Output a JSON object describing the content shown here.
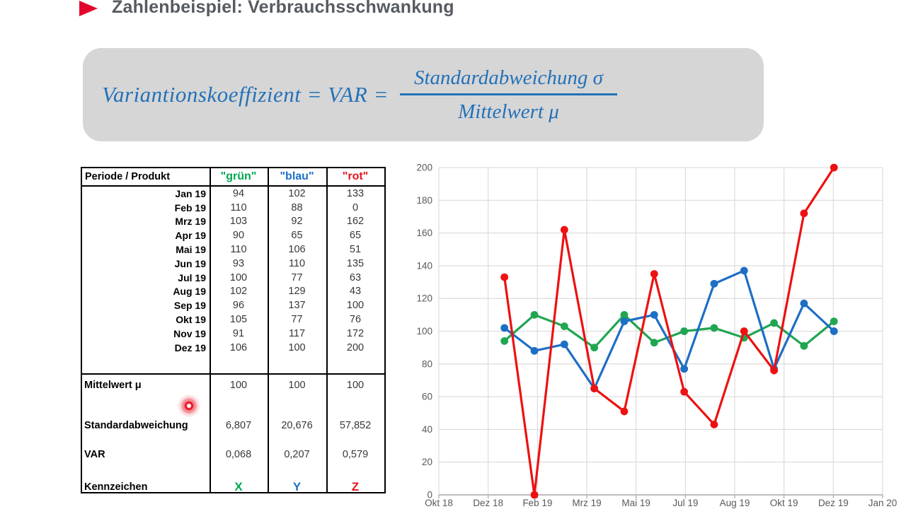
{
  "header": {
    "title": "Zahlenbeispiel: Verbrauchsschwankung"
  },
  "formula": {
    "lhs": "Variantionskoeffizient = VAR =",
    "numerator": "Standardabweichung σ",
    "denominator": "Mittelwert μ"
  },
  "table": {
    "corner_header": "Periode / Produkt",
    "product_columns": [
      {
        "label": "\"grün\"",
        "color": "#00a651"
      },
      {
        "label": "\"blau\"",
        "color": "#1d70c8"
      },
      {
        "label": "\"rot\"",
        "color": "#e3141c"
      }
    ],
    "month_rows": [
      {
        "month": "Jan 19",
        "values": [
          94,
          102,
          133
        ]
      },
      {
        "month": "Feb 19",
        "values": [
          110,
          88,
          0
        ]
      },
      {
        "month": "Mrz 19",
        "values": [
          103,
          92,
          162
        ]
      },
      {
        "month": "Apr 19",
        "values": [
          90,
          65,
          65
        ]
      },
      {
        "month": "Mai 19",
        "values": [
          110,
          106,
          51
        ]
      },
      {
        "month": "Jun 19",
        "values": [
          93,
          110,
          135
        ]
      },
      {
        "month": "Jul 19",
        "values": [
          100,
          77,
          63
        ]
      },
      {
        "month": "Aug 19",
        "values": [
          102,
          129,
          43
        ]
      },
      {
        "month": "Sep 19",
        "values": [
          96,
          137,
          100
        ]
      },
      {
        "month": "Okt 19",
        "values": [
          105,
          77,
          76
        ]
      },
      {
        "month": "Nov 19",
        "values": [
          91,
          117,
          172
        ]
      },
      {
        "month": "Dez 19",
        "values": [
          106,
          100,
          200
        ]
      }
    ],
    "summary_rows": [
      {
        "label": "Mittelwert μ",
        "values": [
          "100",
          "100",
          "100"
        ],
        "colored": false
      },
      {
        "label": "Standardabweichung",
        "values": [
          "6,807",
          "20,676",
          "57,852"
        ],
        "colored": false
      },
      {
        "label": "VAR",
        "values": [
          "0,068",
          "0,207",
          "0,579"
        ],
        "colored": false
      },
      {
        "label": "Kennzeichen",
        "values": [
          "X",
          "Y",
          "Z"
        ],
        "colored": true
      }
    ]
  },
  "chart_data": {
    "type": "line",
    "categories": [
      "Jan 19",
      "Feb 19",
      "Mrz 19",
      "Apr 19",
      "Mai 19",
      "Jun 19",
      "Jul 19",
      "Aug 19",
      "Sep 19",
      "Okt 19",
      "Nov 19",
      "Dez 19"
    ],
    "series": [
      {
        "name": "grün",
        "color": "#21a551",
        "values": [
          94,
          110,
          103,
          90,
          110,
          93,
          100,
          102,
          96,
          105,
          91,
          106
        ]
      },
      {
        "name": "blau",
        "color": "#1d6ec5",
        "values": [
          102,
          88,
          92,
          65,
          106,
          110,
          77,
          129,
          137,
          77,
          117,
          100
        ]
      },
      {
        "name": "rot",
        "color": "#ed1111",
        "values": [
          133,
          0,
          162,
          65,
          51,
          135,
          63,
          43,
          100,
          76,
          172,
          200
        ]
      }
    ],
    "x_tick_labels": [
      "Okt 18",
      "Dez 18",
      "Feb 19",
      "Mrz 19",
      "Mai 19",
      "Jul 19",
      "Aug 19",
      "Okt 19",
      "Dez 19",
      "Jan 20"
    ],
    "y_ticks": [
      0,
      20,
      40,
      60,
      80,
      100,
      120,
      140,
      160,
      180,
      200
    ],
    "ylim": [
      0,
      200
    ],
    "grid": true,
    "legend": "none",
    "grid_color": "#d9d9d9",
    "axis_color": "#a6a6a6"
  }
}
